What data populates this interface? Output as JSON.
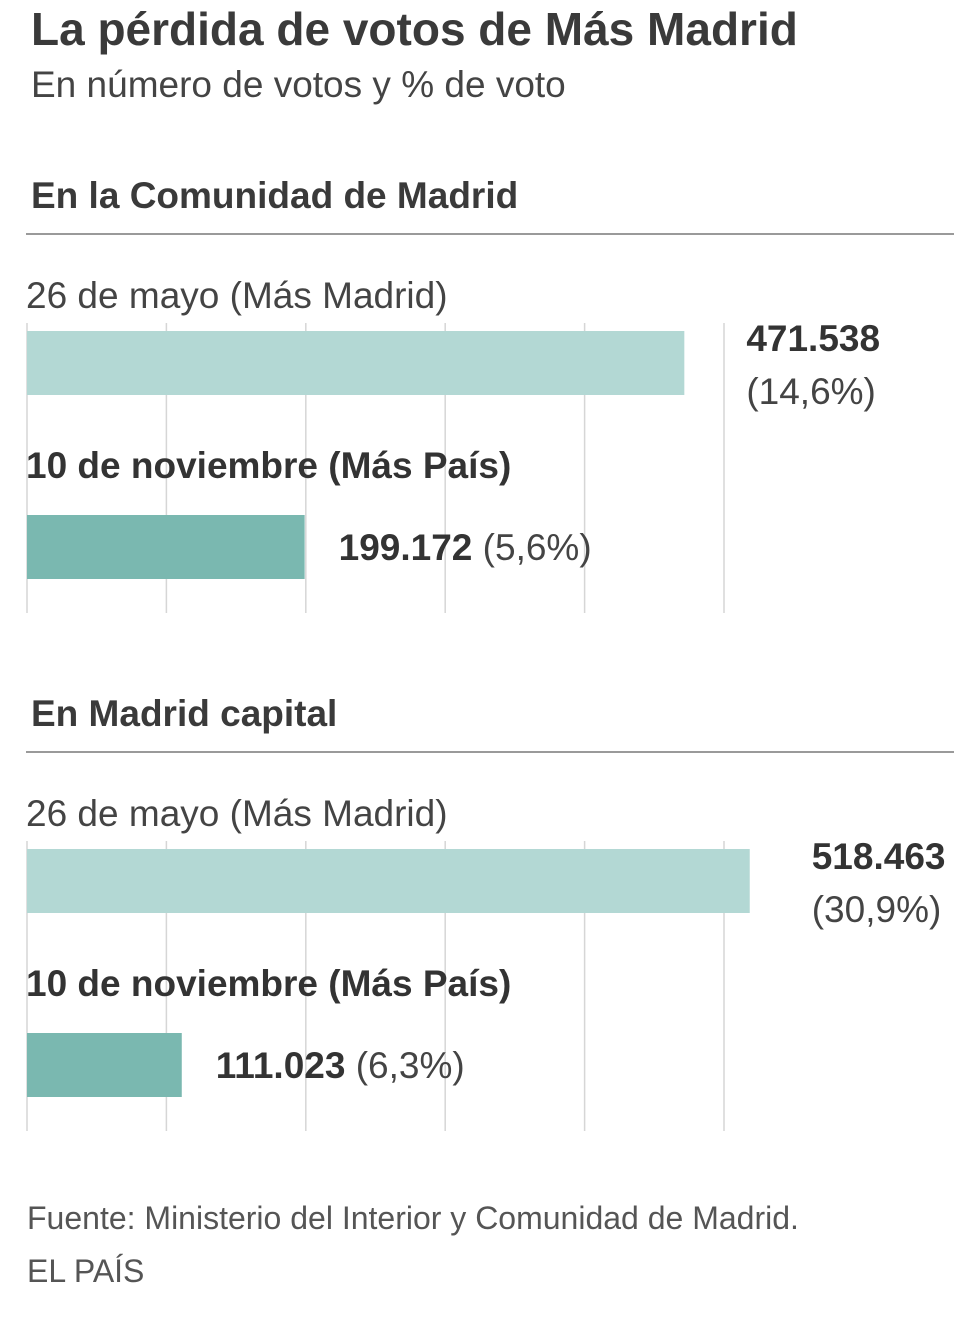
{
  "header": {
    "title": "La pérdida de votos de Más Madrid",
    "subtitle": "En número de votos y % de voto"
  },
  "colors": {
    "may_bar": "#b3d8d4",
    "nov_bar": "#7ab8b0",
    "grid": "#d6d6d6"
  },
  "chart_data": [
    {
      "type": "bar",
      "title": "En la Comunidad de Madrid",
      "orientation": "horizontal",
      "categories": [
        "26 de mayo (Más Madrid)",
        "10 de noviembre (Más País)"
      ],
      "values": [
        471538,
        199172
      ],
      "value_labels": [
        "471.538",
        "199.172"
      ],
      "percent_labels": [
        "(14,6%)",
        "(5,6%)"
      ],
      "xlim": [
        0,
        500000
      ],
      "grid": true
    },
    {
      "type": "bar",
      "title": "En Madrid capital",
      "orientation": "horizontal",
      "categories": [
        "26 de mayo (Más Madrid)",
        "10 de noviembre (Más País)"
      ],
      "values": [
        518463,
        111023
      ],
      "value_labels": [
        "518.463",
        "111.023"
      ],
      "percent_labels": [
        "(30,9%)",
        "(6,3%)"
      ],
      "xlim": [
        0,
        500000
      ],
      "grid": true
    }
  ],
  "footer": {
    "source": "Fuente: Ministerio del Interior y Comunidad de Madrid.",
    "credit": "EL PAÍS"
  }
}
